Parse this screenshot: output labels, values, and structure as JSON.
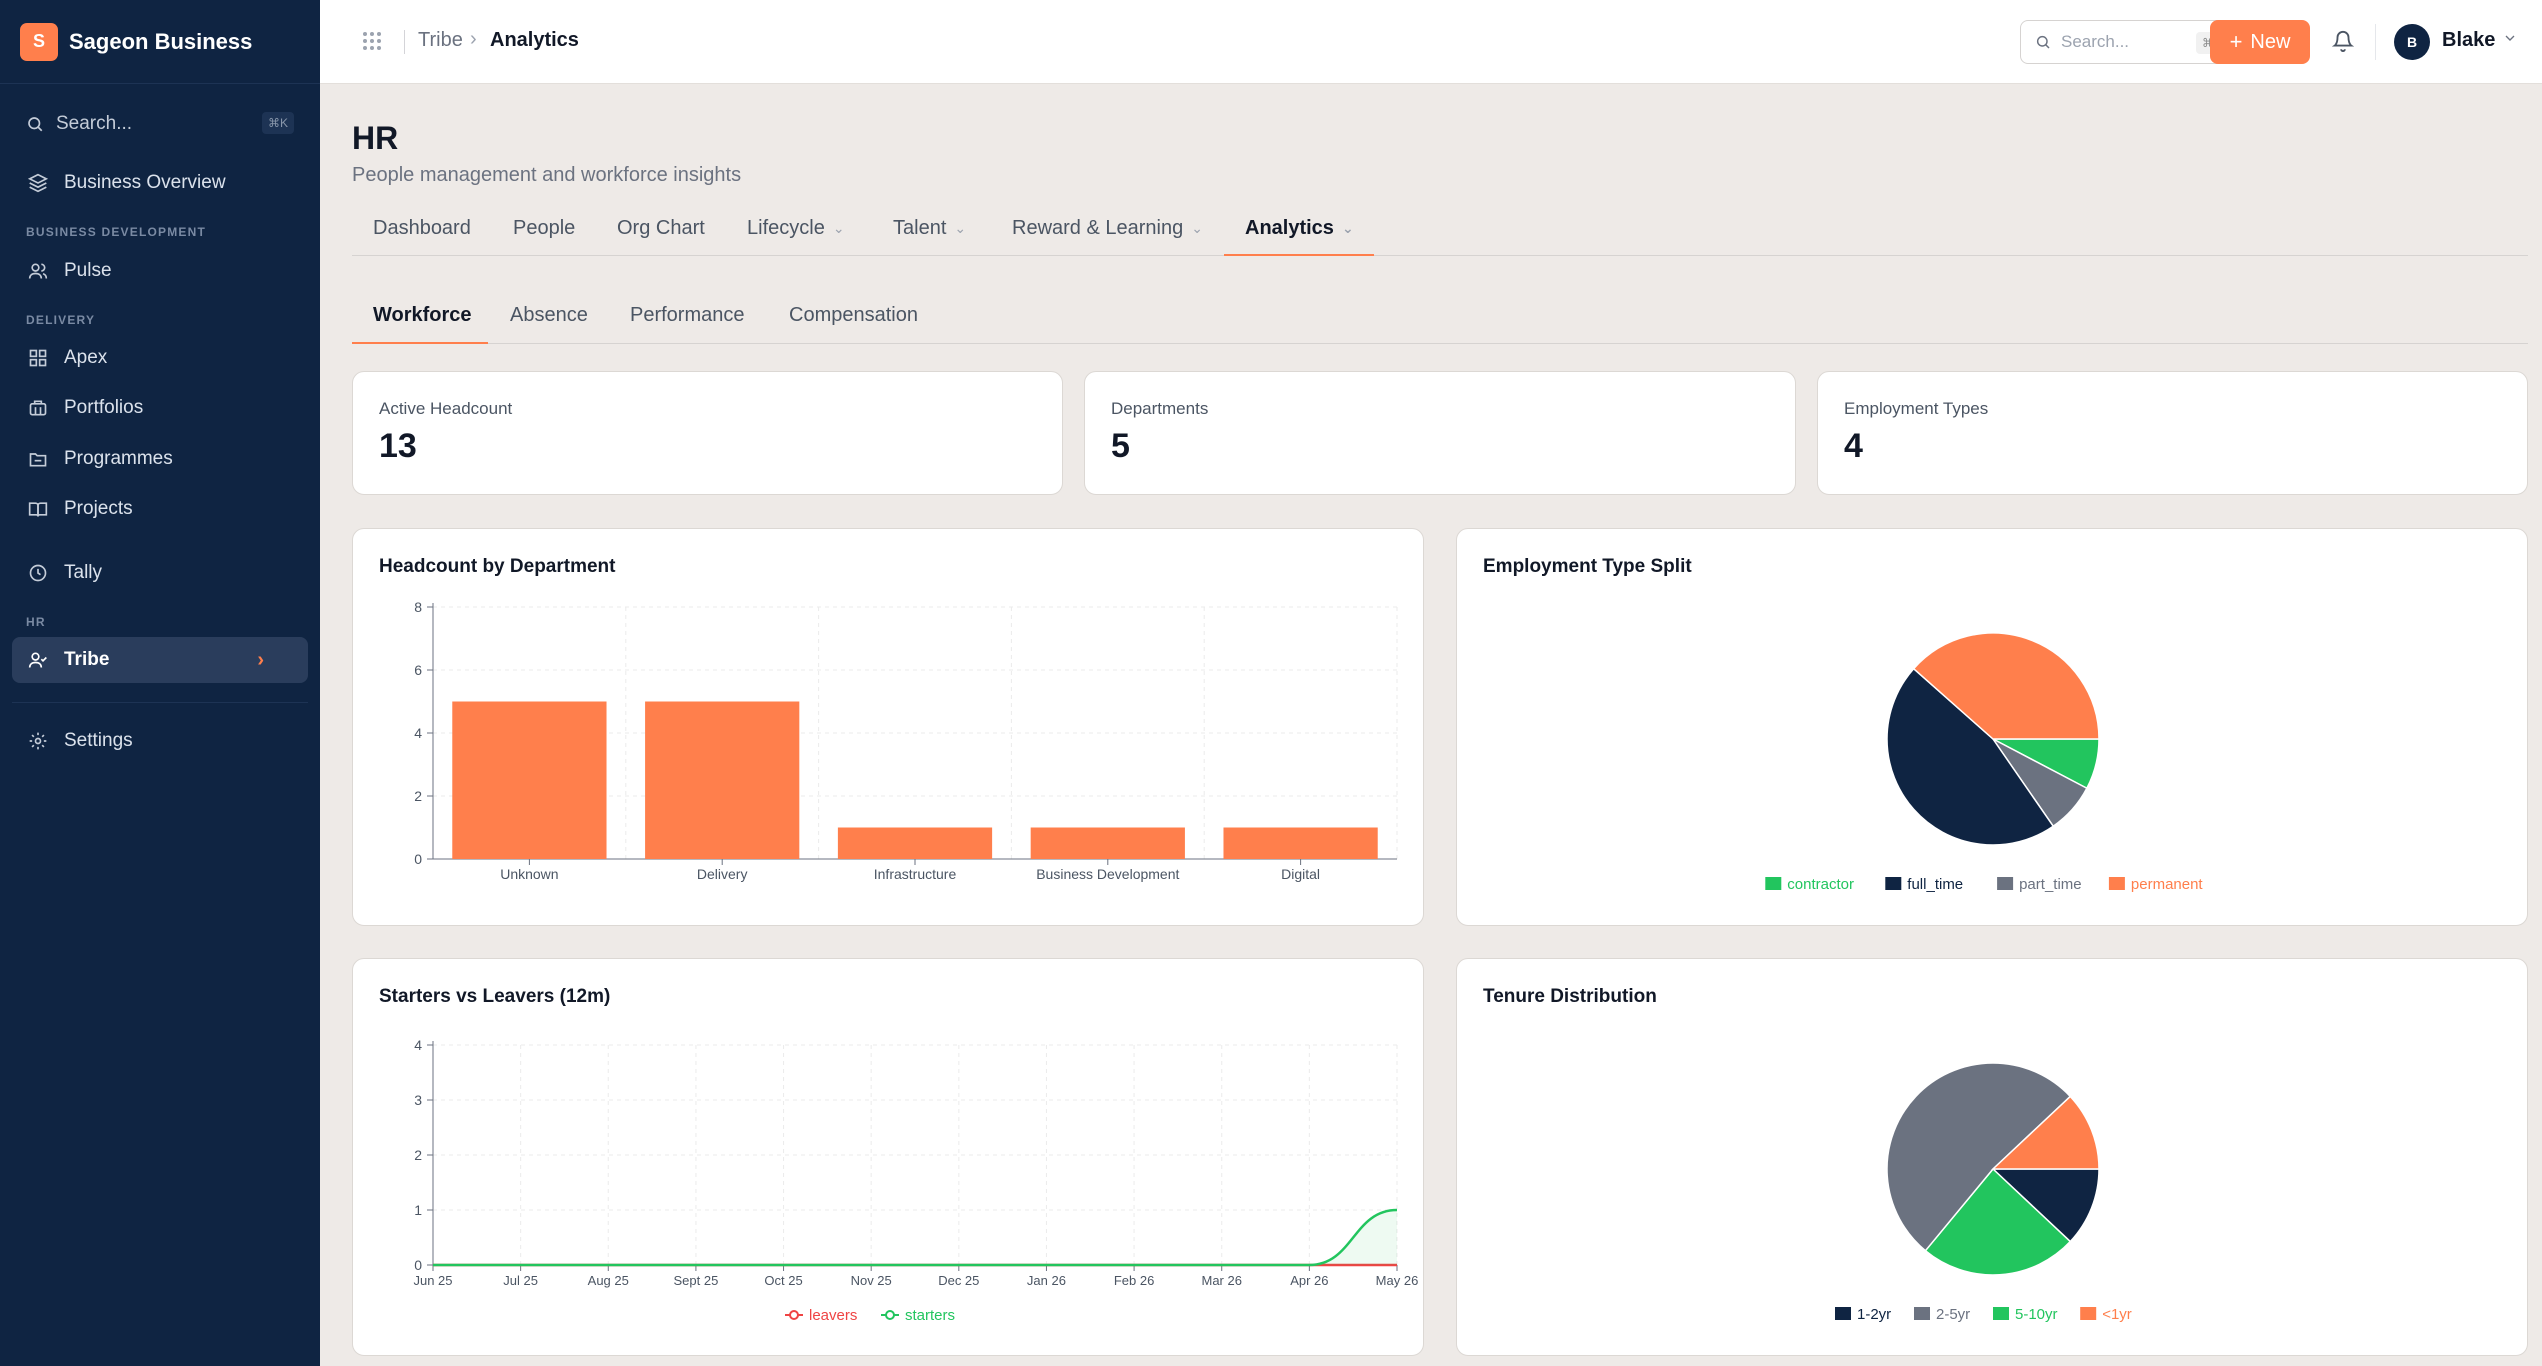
{
  "brand": {
    "initial": "S",
    "name": "Sageon Business"
  },
  "sidebar": {
    "search_placeholder": "Search...",
    "search_kbd": "⌘K",
    "items": [
      {
        "label": "Business Overview",
        "icon": "layers-icon"
      },
      {
        "section": "BUSINESS DEVELOPMENT"
      },
      {
        "label": "Pulse",
        "icon": "users-icon"
      },
      {
        "section": "DELIVERY"
      },
      {
        "label": "Apex",
        "icon": "grid-icon"
      },
      {
        "label": "Portfolios",
        "icon": "briefcase-icon"
      },
      {
        "label": "Programmes",
        "icon": "folder-icon"
      },
      {
        "label": "Projects",
        "icon": "book-icon"
      },
      {
        "label": "Tally",
        "icon": "clock-icon"
      },
      {
        "section": "HR"
      },
      {
        "label": "Tribe",
        "icon": "user-check-icon",
        "active": true
      },
      {
        "label": "Settings",
        "icon": "gear-icon"
      }
    ]
  },
  "topbar": {
    "breadcrumb": [
      "Tribe",
      "Analytics"
    ],
    "search_placeholder": "Search...",
    "search_kbd": "⌘K",
    "new_label": "New",
    "user_initial": "B",
    "user_name": "Blake"
  },
  "page": {
    "title": "HR",
    "subtitle": "People management and workforce insights",
    "tabs": [
      {
        "label": "Dashboard"
      },
      {
        "label": "People"
      },
      {
        "label": "Org Chart"
      },
      {
        "label": "Lifecycle",
        "dropdown": true
      },
      {
        "label": "Talent",
        "dropdown": true
      },
      {
        "label": "Reward & Learning",
        "dropdown": true
      },
      {
        "label": "Analytics",
        "dropdown": true,
        "active": true
      }
    ],
    "subtabs": [
      {
        "label": "Workforce",
        "active": true
      },
      {
        "label": "Absence"
      },
      {
        "label": "Performance"
      },
      {
        "label": "Compensation"
      }
    ]
  },
  "stats": [
    {
      "label": "Active Headcount",
      "value": "13"
    },
    {
      "label": "Departments",
      "value": "5"
    },
    {
      "label": "Employment Types",
      "value": "4"
    }
  ],
  "colors": {
    "accent": "#ff7f4c",
    "navy": "#0f2442",
    "green": "#22c55e",
    "gray": "#6b7280",
    "red": "#ef4444"
  },
  "chart_data": [
    {
      "type": "bar",
      "title": "Headcount by Department",
      "categories": [
        "Unknown",
        "Delivery",
        "Infrastructure",
        "Business Development",
        "Digital"
      ],
      "values": [
        5,
        5,
        1,
        1,
        1
      ],
      "ylim": [
        0,
        8
      ],
      "yticks": [
        0,
        2,
        4,
        6,
        8
      ],
      "grid": true
    },
    {
      "type": "pie",
      "title": "Employment Type Split",
      "labels": [
        "contractor",
        "full_time",
        "part_time",
        "permanent"
      ],
      "values": [
        1,
        6,
        1,
        5
      ],
      "colors": [
        "#22c55e",
        "#0f2442",
        "#6b7280",
        "#ff7f4c"
      ],
      "legend": "bottom"
    },
    {
      "type": "line",
      "title": "Starters vs Leavers (12m)",
      "x": [
        "Jun 25",
        "Jul 25",
        "Aug 25",
        "Sept 25",
        "Oct 25",
        "Nov 25",
        "Dec 25",
        "Jan 26",
        "Feb 26",
        "Mar 26",
        "Apr 26",
        "May 26"
      ],
      "series": [
        {
          "name": "leavers",
          "values": [
            0,
            0,
            0,
            0,
            0,
            0,
            0,
            0,
            0,
            0,
            0,
            0
          ],
          "color": "#ef4444"
        },
        {
          "name": "starters",
          "values": [
            0,
            0,
            0,
            0,
            0,
            0,
            0,
            0,
            0,
            0,
            0,
            1
          ],
          "color": "#22c55e"
        }
      ],
      "ylim": [
        0,
        4
      ],
      "yticks": [
        0,
        1,
        2,
        3,
        4
      ],
      "grid": true,
      "legend": "bottom"
    },
    {
      "type": "pie",
      "title": "Tenure Distribution",
      "labels": [
        "1-2yr",
        "2-5yr",
        "5-10yr",
        "<1yr"
      ],
      "values": [
        1.5,
        6.5,
        3,
        1.5
      ],
      "colors": [
        "#0f2442",
        "#6b7280",
        "#22c55e",
        "#ff7f4c"
      ],
      "legend": "bottom"
    }
  ]
}
